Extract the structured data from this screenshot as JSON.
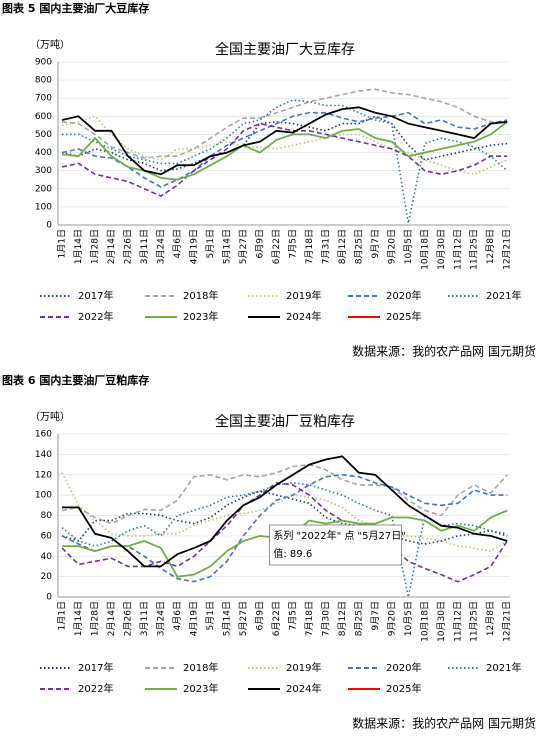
{
  "chart_data": [
    {
      "type": "line",
      "caption": "图表 5 国内主要油厂大豆库存",
      "title": "全国主要油厂大豆库存",
      "unit": "（万吨）",
      "source": "数据来源：我的农产品网 国元期货",
      "categories": [
        "1月1日",
        "1月14日",
        "1月28日",
        "2月14日",
        "2月26日",
        "3月11日",
        "3月24日",
        "4月6日",
        "4月19日",
        "5月1日",
        "5月14日",
        "5月27日",
        "6月9日",
        "6月22日",
        "7月5日",
        "7月18日",
        "7月31日",
        "8月12日",
        "8月25日",
        "9月7日",
        "9月20日",
        "10月5日",
        "10月18日",
        "10月30日",
        "11月12日",
        "11月25日",
        "12月8日",
        "12月21日"
      ],
      "ylim": [
        0,
        900
      ],
      "yticks": [
        0,
        100,
        200,
        300,
        400,
        500,
        600,
        700,
        800,
        900
      ],
      "grid": true,
      "series": [
        {
          "name": "2017年",
          "color": "#1f3a6e",
          "dash": "dot",
          "values": [
            400,
            380,
            420,
            400,
            360,
            340,
            300,
            310,
            340,
            380,
            400,
            440,
            560,
            570,
            560,
            540,
            520,
            560,
            560,
            600,
            560,
            440,
            360,
            380,
            400,
            420,
            440,
            450
          ]
        },
        {
          "name": "2018年",
          "color": "#a6a6a6",
          "dash": "dash",
          "values": [
            570,
            560,
            500,
            430,
            400,
            370,
            380,
            380,
            420,
            480,
            540,
            590,
            590,
            620,
            650,
            680,
            700,
            720,
            740,
            750,
            730,
            720,
            700,
            680,
            650,
            600,
            570,
            560
          ]
        },
        {
          "name": "2019年",
          "color": "#b4c76e",
          "dash": "dot",
          "values": [
            550,
            570,
            600,
            500,
            420,
            380,
            360,
            420,
            420,
            440,
            460,
            430,
            430,
            420,
            440,
            460,
            480,
            500,
            500,
            460,
            420,
            400,
            360,
            330,
            300,
            280,
            320,
            360
          ]
        },
        {
          "name": "2020年",
          "color": "#4472c4",
          "dash": "dash",
          "values": [
            400,
            420,
            380,
            370,
            320,
            260,
            210,
            250,
            300,
            380,
            440,
            480,
            520,
            560,
            600,
            620,
            620,
            590,
            570,
            590,
            600,
            620,
            560,
            580,
            540,
            530,
            560,
            580
          ]
        },
        {
          "name": "2021年",
          "color": "#2e75b6",
          "dash": "dot",
          "values": [
            500,
            500,
            460,
            420,
            380,
            360,
            340,
            340,
            380,
            420,
            480,
            560,
            580,
            650,
            690,
            680,
            660,
            660,
            620,
            580,
            560,
            10,
            450,
            480,
            460,
            430,
            380,
            300
          ]
        },
        {
          "name": "2022年",
          "color": "#7030a0",
          "dash": "dash",
          "values": [
            320,
            340,
            280,
            260,
            240,
            200,
            160,
            220,
            300,
            360,
            420,
            520,
            560,
            540,
            520,
            520,
            500,
            480,
            460,
            440,
            420,
            380,
            300,
            280,
            300,
            330,
            380,
            380
          ]
        },
        {
          "name": "2023年",
          "color": "#70ad47",
          "dash": "solid",
          "values": [
            390,
            380,
            480,
            380,
            320,
            300,
            260,
            250,
            280,
            330,
            380,
            440,
            400,
            470,
            500,
            500,
            480,
            520,
            530,
            480,
            460,
            380,
            400,
            420,
            440,
            460,
            500,
            570
          ]
        },
        {
          "name": "2024年",
          "color": "#000000",
          "dash": "solid",
          "values": [
            580,
            600,
            520,
            520,
            380,
            300,
            280,
            330,
            330,
            380,
            400,
            440,
            460,
            520,
            510,
            560,
            610,
            640,
            650,
            620,
            600,
            560,
            540,
            520,
            500,
            480,
            560,
            570
          ]
        },
        {
          "name": "2025年",
          "color": "#ff0000",
          "dash": "solid",
          "values": [
            null,
            null,
            null,
            null,
            null,
            null,
            null,
            null,
            null,
            null,
            null,
            null,
            null,
            null,
            null,
            null,
            null,
            null,
            null,
            null,
            null,
            null,
            null,
            null,
            null,
            null,
            null,
            null
          ]
        }
      ]
    },
    {
      "type": "line",
      "caption": "图表 6 国内主要油厂豆粕库存",
      "title": "全国主要油厂豆粕库存",
      "unit": "（万吨）",
      "source": "数据来源：我的农产品网 国元期货",
      "categories": [
        "1月1日",
        "1月14日",
        "1月28日",
        "2月14日",
        "2月26日",
        "3月11日",
        "3月24日",
        "4月6日",
        "4月19日",
        "5月1日",
        "5月14日",
        "5月27日",
        "6月9日",
        "6月22日",
        "7月5日",
        "7月18日",
        "7月30日",
        "8月12日",
        "8月25日",
        "9月7日",
        "9月20日",
        "10月5日",
        "10月18日",
        "10月30日",
        "11月12日",
        "11月25日",
        "12月8日",
        "12月21日"
      ],
      "ylim": [
        0,
        160
      ],
      "yticks": [
        0,
        20,
        40,
        60,
        80,
        100,
        120,
        140,
        160
      ],
      "grid": true,
      "tooltip": {
        "line1": "系列 \"2022年\" 点 \"5月27日\"",
        "line2": "值: 89.6"
      },
      "series": [
        {
          "name": "2017年",
          "color": "#1f3a6e",
          "dash": "dot",
          "values": [
            60,
            55,
            75,
            75,
            82,
            82,
            80,
            75,
            72,
            78,
            90,
            98,
            104,
            100,
            96,
            92,
            78,
            72,
            70,
            70,
            60,
            55,
            52,
            55,
            60,
            62,
            65,
            60
          ]
        },
        {
          "name": "2018年",
          "color": "#a6a6a6",
          "dash": "dash",
          "values": [
            85,
            88,
            78,
            72,
            80,
            86,
            85,
            95,
            118,
            120,
            115,
            120,
            118,
            122,
            128,
            130,
            125,
            115,
            110,
            110,
            108,
            95,
            85,
            80,
            100,
            110,
            102,
            120
          ]
        },
        {
          "name": "2019年",
          "color": "#b4c76e",
          "dash": "dot",
          "values": [
            122,
            90,
            75,
            62,
            60,
            60,
            62,
            62,
            70,
            75,
            80,
            82,
            85,
            92,
            100,
            98,
            95,
            88,
            75,
            70,
            62,
            60,
            58,
            55,
            50,
            48,
            45,
            55
          ]
        },
        {
          "name": "2020年",
          "color": "#4472c4",
          "dash": "dash",
          "values": [
            60,
            52,
            45,
            50,
            50,
            40,
            28,
            18,
            15,
            20,
            35,
            60,
            80,
            95,
            100,
            110,
            118,
            120,
            118,
            112,
            108,
            100,
            92,
            90,
            92,
            105,
            100,
            100
          ]
        },
        {
          "name": "2021年",
          "color": "#2e75b6",
          "dash": "dot",
          "values": [
            68,
            55,
            50,
            55,
            65,
            70,
            60,
            80,
            85,
            90,
            98,
            100,
            104,
            110,
            112,
            110,
            105,
            100,
            92,
            85,
            80,
            0,
            80,
            70,
            72,
            70,
            65,
            62
          ]
        },
        {
          "name": "2022年",
          "color": "#7030a0",
          "dash": "dash",
          "values": [
            48,
            32,
            35,
            38,
            30,
            30,
            35,
            30,
            40,
            55,
            70,
            89.6,
            100,
            112,
            110,
            100,
            85,
            75,
            72,
            60,
            50,
            35,
            28,
            22,
            15,
            22,
            30,
            55
          ]
        },
        {
          "name": "2023年",
          "color": "#70ad47",
          "dash": "solid",
          "values": [
            50,
            50,
            45,
            50,
            50,
            55,
            48,
            20,
            22,
            30,
            45,
            55,
            60,
            58,
            62,
            75,
            72,
            75,
            72,
            72,
            78,
            78,
            75,
            65,
            70,
            65,
            78,
            85
          ]
        },
        {
          "name": "2024年",
          "color": "#000000",
          "dash": "solid",
          "values": [
            88,
            88,
            62,
            58,
            45,
            30,
            30,
            42,
            48,
            55,
            75,
            90,
            98,
            110,
            120,
            130,
            135,
            138,
            122,
            120,
            105,
            90,
            80,
            70,
            68,
            62,
            60,
            55
          ]
        },
        {
          "name": "2025年",
          "color": "#ff0000",
          "dash": "solid",
          "values": [
            null,
            null,
            null,
            null,
            null,
            null,
            null,
            null,
            null,
            null,
            null,
            null,
            null,
            null,
            null,
            null,
            null,
            null,
            null,
            null,
            null,
            null,
            null,
            null,
            null,
            null,
            null,
            null
          ]
        }
      ]
    }
  ]
}
